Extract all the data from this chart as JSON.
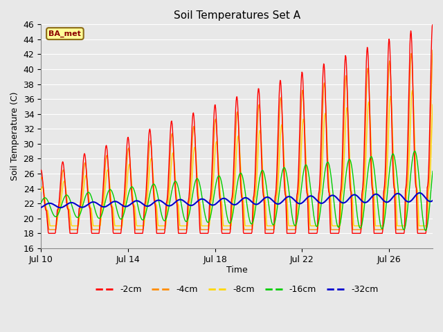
{
  "title": "Soil Temperatures Set A",
  "xlabel": "Time",
  "ylabel": "Soil Temperature (C)",
  "ylim": [
    16,
    46
  ],
  "xlim": [
    0,
    18
  ],
  "yticks": [
    16,
    18,
    20,
    22,
    24,
    26,
    28,
    30,
    32,
    34,
    36,
    38,
    40,
    42,
    44,
    46
  ],
  "xtick_positions": [
    0,
    4,
    8,
    12,
    16
  ],
  "xtick_labels": [
    "Jul 10",
    "Jul 14",
    "Jul 18",
    "Jul 22",
    "Jul 26"
  ],
  "annotation_text": "BA_met",
  "annotation_color": "#8B0000",
  "annotation_bg": "#FFFF99",
  "annotation_border": "#8B6914",
  "series_colors": [
    "#FF0000",
    "#FF8C00",
    "#FFD700",
    "#00CC00",
    "#0000CD"
  ],
  "series_labels": [
    "-2cm",
    "-4cm",
    "-8cm",
    "-16cm",
    "-32cm"
  ],
  "fig_bg_color": "#E8E8E8",
  "plot_bg_color": "#E8E8E8",
  "grid_color": "#FFFFFF",
  "title_fontsize": 11,
  "label_fontsize": 9,
  "tick_fontsize": 9
}
